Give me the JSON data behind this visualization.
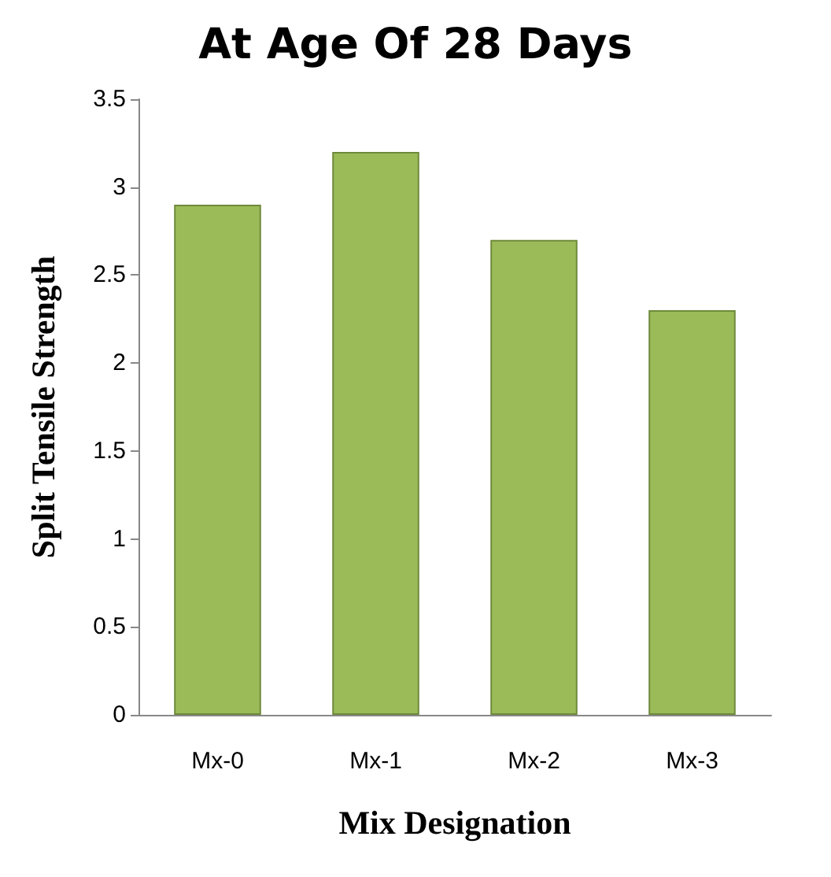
{
  "chart_data": {
    "type": "bar",
    "title": "At Age Of 28 Days",
    "xlabel": "Mix Designation",
    "ylabel": "Split Tensile Strength",
    "categories": [
      "Mx-0",
      "Mx-1",
      "Mx-2",
      "Mx-3"
    ],
    "values": [
      2.9,
      3.2,
      2.7,
      2.3
    ],
    "color": "#9bbb59",
    "ylim": [
      0,
      3.5
    ],
    "yticks": [
      0,
      0.5,
      1,
      1.5,
      2,
      2.5,
      3,
      3.5
    ],
    "grid": false
  }
}
